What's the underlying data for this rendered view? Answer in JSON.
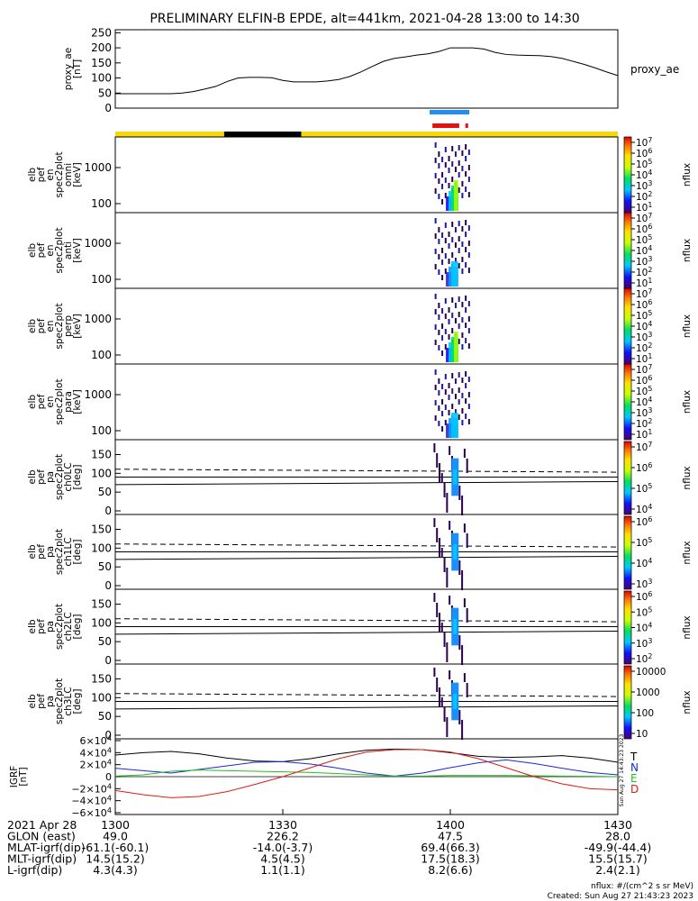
{
  "title": "PRELIMINARY ELFIN-B EPDE, alt=441km, 2021-04-28 13:00 to 14:30",
  "colors": {
    "ae_line": "#000000",
    "bar_yellow": "#f5d90a",
    "bar_black": "#000000",
    "bar_blue": "#1f8ff2",
    "bar_red": "#e8120c",
    "igrf_T": "#000000",
    "igrf_N": "#1a28d8",
    "igrf_E": "#21c21c",
    "igrf_D": "#e11b0f"
  },
  "ae_panel": {
    "ylabel": "proxy_ae [nT]",
    "ylabel_lines": [
      "proxy_ae",
      "[nT]"
    ],
    "right_label": "proxy_ae",
    "yticks": [
      "250",
      "200",
      "150",
      "100",
      "50",
      "0"
    ]
  },
  "spec_panels": [
    {
      "ylabel_lines": [
        "elb",
        "pef",
        "en",
        "spec2plot",
        "omni",
        "[keV]"
      ],
      "yticks": [
        "1000",
        "100"
      ],
      "cbar_label": "nflux",
      "cbar_ticks": [
        "10^7",
        "10^6",
        "10^5",
        "10^4",
        "10^3",
        "10^2",
        "10^1"
      ]
    },
    {
      "ylabel_lines": [
        "elb",
        "pef",
        "en",
        "spec2plot",
        "anti",
        "[keV]"
      ],
      "yticks": [
        "1000",
        "100"
      ],
      "cbar_label": "nflux",
      "cbar_ticks": [
        "10^7",
        "10^6",
        "10^5",
        "10^4",
        "10^3",
        "10^2",
        "10^1"
      ]
    },
    {
      "ylabel_lines": [
        "elb",
        "pef",
        "en",
        "spec2plot",
        "perp",
        "[keV]"
      ],
      "yticks": [
        "1000",
        "100"
      ],
      "cbar_label": "nflux",
      "cbar_ticks": [
        "10^7",
        "10^6",
        "10^5",
        "10^4",
        "10^3",
        "10^2",
        "10^1"
      ]
    },
    {
      "ylabel_lines": [
        "elb",
        "pef",
        "en",
        "spec2plot",
        "para",
        "[keV]"
      ],
      "yticks": [
        "1000",
        "100"
      ],
      "cbar_label": "nflux",
      "cbar_ticks": [
        "10^7",
        "10^6",
        "10^5",
        "10^4",
        "10^3",
        "10^2",
        "10^1"
      ]
    }
  ],
  "pa_panels": [
    {
      "ylabel_lines": [
        "elb",
        "pef",
        "pa",
        "spec2plot",
        "ch0LC",
        "[deg]"
      ],
      "yticks": [
        "150",
        "100",
        "50",
        "0"
      ],
      "cbar_label": "nflux",
      "cbar_ticks": [
        "10^7",
        "10^6",
        "10^5",
        "10^4"
      ]
    },
    {
      "ylabel_lines": [
        "elb",
        "pef",
        "pa",
        "spec2plot",
        "ch1LC",
        "[deg]"
      ],
      "yticks": [
        "150",
        "100",
        "50",
        "0"
      ],
      "cbar_label": "nflux",
      "cbar_ticks": [
        "10^6",
        "10^5",
        "10^4",
        "10^3"
      ]
    },
    {
      "ylabel_lines": [
        "elb",
        "pef",
        "pa",
        "spec2plot",
        "ch2LC",
        "[deg]"
      ],
      "yticks": [
        "150",
        "100",
        "50",
        "0"
      ],
      "cbar_label": "nflux",
      "cbar_ticks": [
        "10^6",
        "10^5",
        "10^4",
        "10^3",
        "10^2"
      ]
    },
    {
      "ylabel_lines": [
        "elb",
        "pef",
        "pa",
        "spec2plot",
        "ch3LC",
        "[deg]"
      ],
      "yticks": [
        "150",
        "100",
        "50",
        "0"
      ],
      "cbar_label": "nflux",
      "cbar_ticks": [
        "10000",
        "1000",
        "100",
        "10"
      ]
    }
  ],
  "igrf_panel": {
    "ylabel_lines": [
      "IGRF",
      "[nT]"
    ],
    "yticks": [
      "6×10^4",
      "4×10^4",
      "2×10^4",
      "0",
      "−2×10^4",
      "−4×10^4",
      "−6×10^4"
    ],
    "legend": [
      {
        "label": "T",
        "color": "#000000"
      },
      {
        "label": "N",
        "color": "#1a28d8"
      },
      {
        "label": "E",
        "color": "#21c21c"
      },
      {
        "label": "D",
        "color": "#e11b0f"
      }
    ]
  },
  "side_stamp": "Sun Aug 27  14:43:23 2023",
  "footer": {
    "rows": [
      [
        "2021 Apr 28",
        "1300",
        "1330",
        "1400",
        "1430"
      ],
      [
        "GLON (east)",
        "49.0",
        "226.2",
        "47.5",
        "28.0"
      ],
      [
        "MLAT-igrf(dip)",
        "-61.1(-60.1)",
        "-14.0(-3.7)",
        "69.4(66.3)",
        "-49.9(-44.4)"
      ],
      [
        "MLT-igrf(dip)",
        "14.5(15.2)",
        "4.5(4.5)",
        "17.5(18.3)",
        "15.5(15.7)"
      ],
      [
        "L-igrf(dip)",
        "4.3(4.3)",
        "1.1(1.1)",
        "8.2(6.6)",
        "2.4(2.1)"
      ]
    ],
    "nflux_units": "nflux: #/(cm^2 s sr MeV)",
    "created": "Created: Sun Aug 27 21:43:23 2023"
  },
  "chart_data": [
    {
      "type": "line",
      "title": "PRELIMINARY ELFIN-B EPDE, alt=441km, 2021-04-28 13:00 to 14:30",
      "ylabel": "proxy_ae [nT]",
      "ylim": [
        0,
        260
      ],
      "x_minutes": [
        0,
        2,
        4,
        6,
        8,
        10,
        12,
        14,
        16,
        18,
        20,
        22,
        24,
        26,
        28,
        30,
        32,
        34,
        36,
        38,
        40,
        42,
        44,
        46,
        48,
        50,
        52,
        54,
        56,
        58,
        60,
        62,
        64,
        66,
        68,
        70,
        72,
        74,
        76,
        78,
        80,
        82,
        84,
        86,
        88,
        90
      ],
      "series": [
        {
          "name": "proxy_AE",
          "values": [
            48,
            48,
            48,
            48,
            48,
            48,
            50,
            55,
            63,
            72,
            88,
            100,
            102,
            102,
            101,
            92,
            87,
            87,
            87,
            90,
            95,
            105,
            120,
            138,
            155,
            165,
            170,
            176,
            180,
            188,
            200,
            200,
            200,
            196,
            185,
            178,
            176,
            175,
            174,
            171,
            165,
            155,
            145,
            133,
            120,
            108
          ]
        }
      ],
      "xlim": [
        "13:00",
        "14:30"
      ]
    },
    {
      "type": "heatmap",
      "panels": [
        "omni",
        "anti",
        "perp",
        "para",
        "ch0LC",
        "ch1LC",
        "ch2LC",
        "ch3LC"
      ],
      "ylabel": "energy [keV] / pitch angle [deg]",
      "event_window_minutes": [
        58.5,
        62.5
      ],
      "colorbar": "nflux"
    },
    {
      "type": "line",
      "ylabel": "IGRF [nT]",
      "ylim": [
        -60000,
        60000
      ],
      "x_minutes": [
        0,
        5,
        10,
        15,
        20,
        25,
        30,
        35,
        40,
        45,
        50,
        55,
        60,
        65,
        70,
        75,
        80,
        85,
        90
      ],
      "series": [
        {
          "name": "T",
          "values": [
            36000,
            40000,
            42000,
            38000,
            31000,
            26000,
            25000,
            30000,
            38000,
            44000,
            46000,
            45000,
            40000,
            34000,
            32000,
            33000,
            35000,
            31000,
            24000
          ]
        },
        {
          "name": "N",
          "values": [
            14000,
            10000,
            6000,
            12000,
            18000,
            24000,
            25000,
            21000,
            14000,
            6000,
            1000,
            6000,
            15000,
            23000,
            28000,
            22000,
            14000,
            7000,
            3000
          ]
        },
        {
          "name": "E",
          "values": [
            1000,
            3000,
            9000,
            11000,
            10000,
            9000,
            8000,
            7000,
            5000,
            3000,
            1000,
            1000,
            2000,
            2000,
            2000,
            1500,
            1000,
            500,
            0
          ]
        },
        {
          "name": "D",
          "values": [
            -23000,
            -30000,
            -35000,
            -33000,
            -25000,
            -13000,
            0,
            15000,
            30000,
            41000,
            45000,
            45000,
            41000,
            30000,
            15000,
            0,
            -12000,
            -20000,
            -22000
          ]
        }
      ],
      "xlim": [
        "13:00",
        "14:30"
      ]
    }
  ]
}
